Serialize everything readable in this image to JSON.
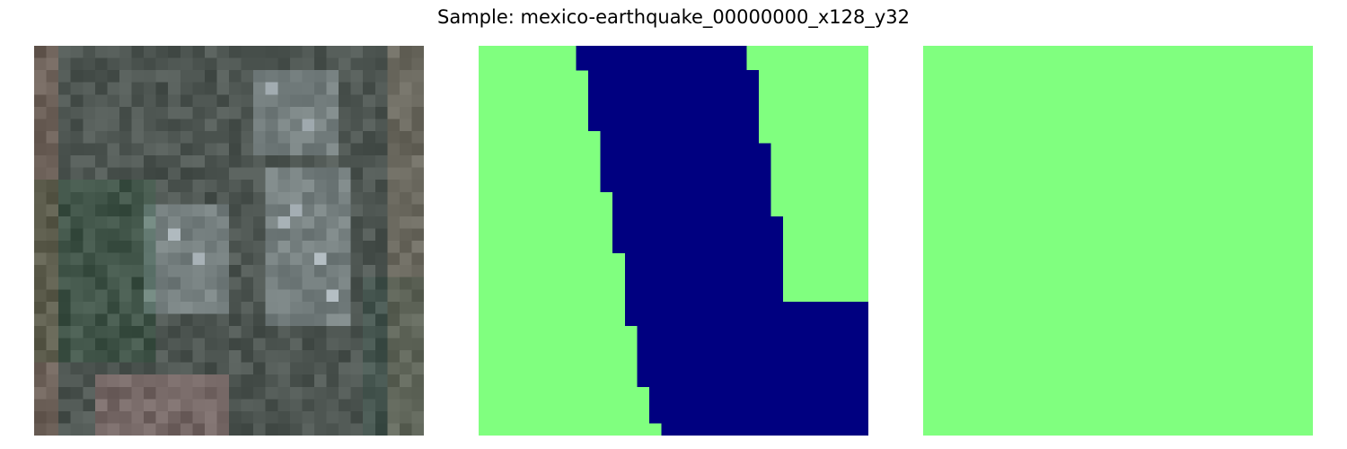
{
  "figure": {
    "title": "Sample: mexico-earthquake_00000000_x128_y32"
  },
  "panels": [
    {
      "id": "image"
    },
    {
      "id": "ground_truth_mask"
    },
    {
      "id": "prediction_mask"
    }
  ],
  "colors": {
    "background_class": "#80ff7f",
    "building_class": "#000080"
  }
}
